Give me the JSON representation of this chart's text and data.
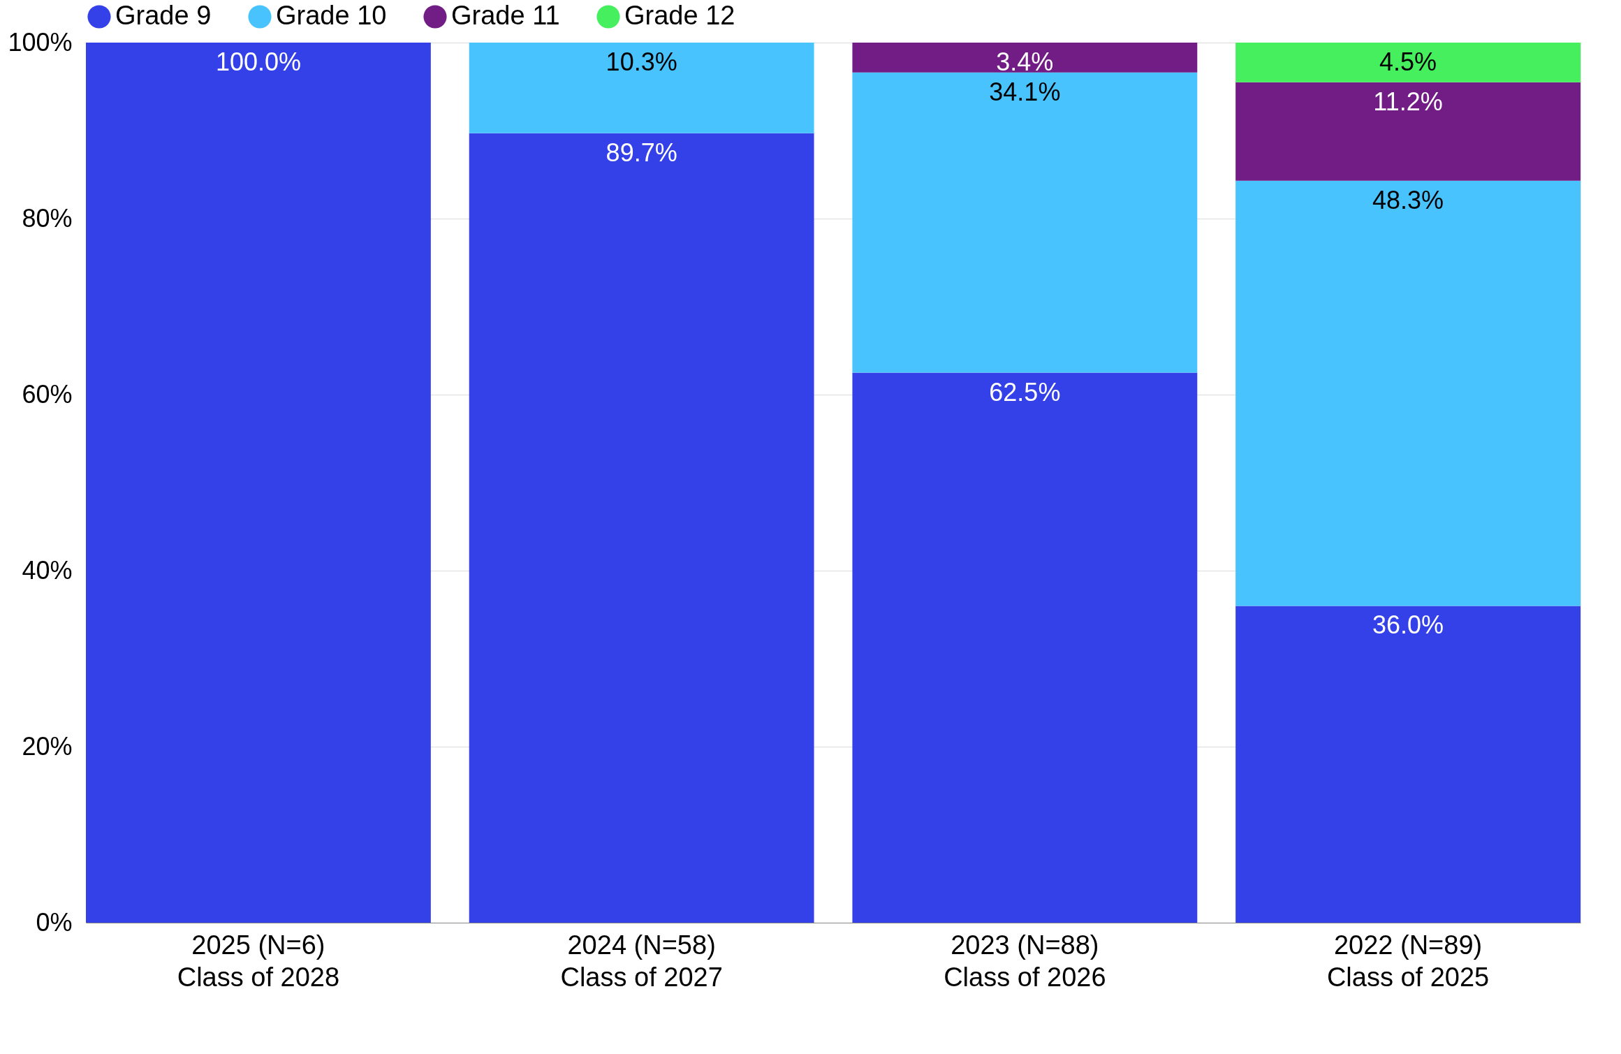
{
  "chart_data": {
    "type": "bar",
    "stacked": true,
    "categories": [
      "2025 (N=6)\nClass of 2028",
      "2024 (N=58)\nClass of 2027",
      "2023 (N=88)\nClass of 2026",
      "2022 (N=89)\nClass of 2025"
    ],
    "series": [
      {
        "name": "Grade 9",
        "color": "#3440e8",
        "values": [
          100,
          89.7,
          62.5,
          36.0
        ],
        "value_labels": [
          "100.0%",
          "89.7%",
          "62.5%",
          "36.0%"
        ]
      },
      {
        "name": "Grade 10",
        "color": "#48c3fd",
        "values": [
          null,
          10.3,
          34.1,
          48.3
        ],
        "value_labels": [
          null,
          "10.3%",
          "34.1%",
          "48.3%"
        ]
      },
      {
        "name": "Grade 11",
        "color": "#721d85",
        "values": [
          null,
          null,
          3.4,
          11.2
        ],
        "value_labels": [
          null,
          null,
          "3.4%",
          "11.2%"
        ]
      },
      {
        "name": "Grade 12",
        "color": "#46ef5e",
        "values": [
          null,
          null,
          null,
          4.5
        ],
        "value_labels": [
          null,
          null,
          null,
          "4.5%"
        ]
      }
    ],
    "ylim": [
      0,
      100
    ],
    "yticks": [
      {
        "value": 0,
        "label": "0%"
      },
      {
        "value": 20,
        "label": "20%"
      },
      {
        "value": 40,
        "label": "40%"
      },
      {
        "value": 60,
        "label": "60%"
      },
      {
        "value": 80,
        "label": "80%"
      },
      {
        "value": 100,
        "label": "100%"
      }
    ],
    "grid": "y",
    "legend": "top"
  }
}
